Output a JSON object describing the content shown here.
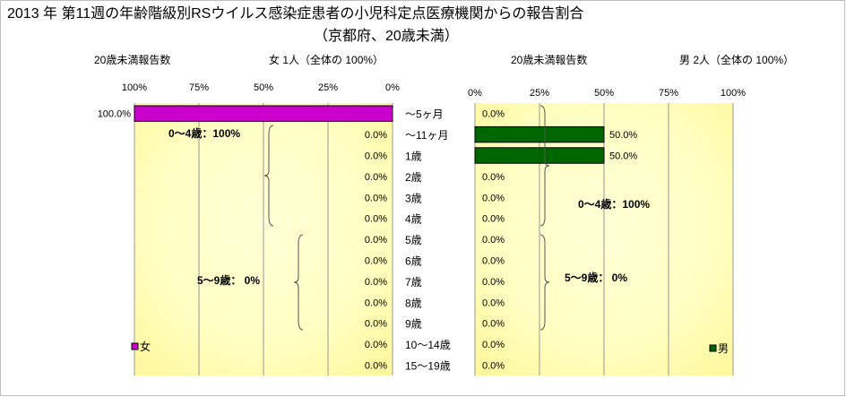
{
  "chart_data": {
    "type": "bar",
    "title": "2013 年 第11週の年齢階級別RSウイルス感染症患者の小児科定点医療機関からの報告割合",
    "subtitle": "（京都府、20歳未満）",
    "categories": [
      "～5ヶ月",
      "～11ヶ月",
      "1歳",
      "2歳",
      "3歳",
      "4歳",
      "5歳",
      "6歳",
      "7歳",
      "8歳",
      "9歳",
      "10～14歳",
      "15～19歳"
    ],
    "xlim": [
      0,
      100
    ],
    "ticks": [
      "0%",
      "25%",
      "50%",
      "75%",
      "100%"
    ],
    "grid": true,
    "panels": [
      {
        "name": "female",
        "header_label": "20歳未満報告数",
        "header_count": "女  1人（全体の  100%）",
        "direction": "right-to-left",
        "legend": "女",
        "color": "#cc00cc",
        "values": [
          100.0,
          0.0,
          0.0,
          0.0,
          0.0,
          0.0,
          0.0,
          0.0,
          0.0,
          0.0,
          0.0,
          0.0,
          0.0
        ],
        "value_labels": [
          "100.0%",
          "0.0%",
          "0.0%",
          "0.0%",
          "0.0%",
          "0.0%",
          "0.0%",
          "0.0%",
          "0.0%",
          "0.0%",
          "0.0%",
          "0.0%",
          "0.0%"
        ],
        "group_labels": [
          "0～4歳：100%",
          "5～9歳：  0%"
        ]
      },
      {
        "name": "male",
        "header_label": "20歳未満報告数",
        "header_count": "男  2人（全体の  100%）",
        "direction": "left-to-right",
        "legend": "男",
        "color": "#006600",
        "values": [
          0.0,
          50.0,
          50.0,
          0.0,
          0.0,
          0.0,
          0.0,
          0.0,
          0.0,
          0.0,
          0.0,
          0.0,
          0.0
        ],
        "value_labels": [
          "0.0%",
          "50.0%",
          "50.0%",
          "0.0%",
          "0.0%",
          "0.0%",
          "0.0%",
          "0.0%",
          "0.0%",
          "0.0%",
          "0.0%",
          "0.0%",
          "0.0%"
        ],
        "group_labels": [
          "0～4歳：100%",
          "5～9歳：  0%"
        ]
      }
    ]
  }
}
